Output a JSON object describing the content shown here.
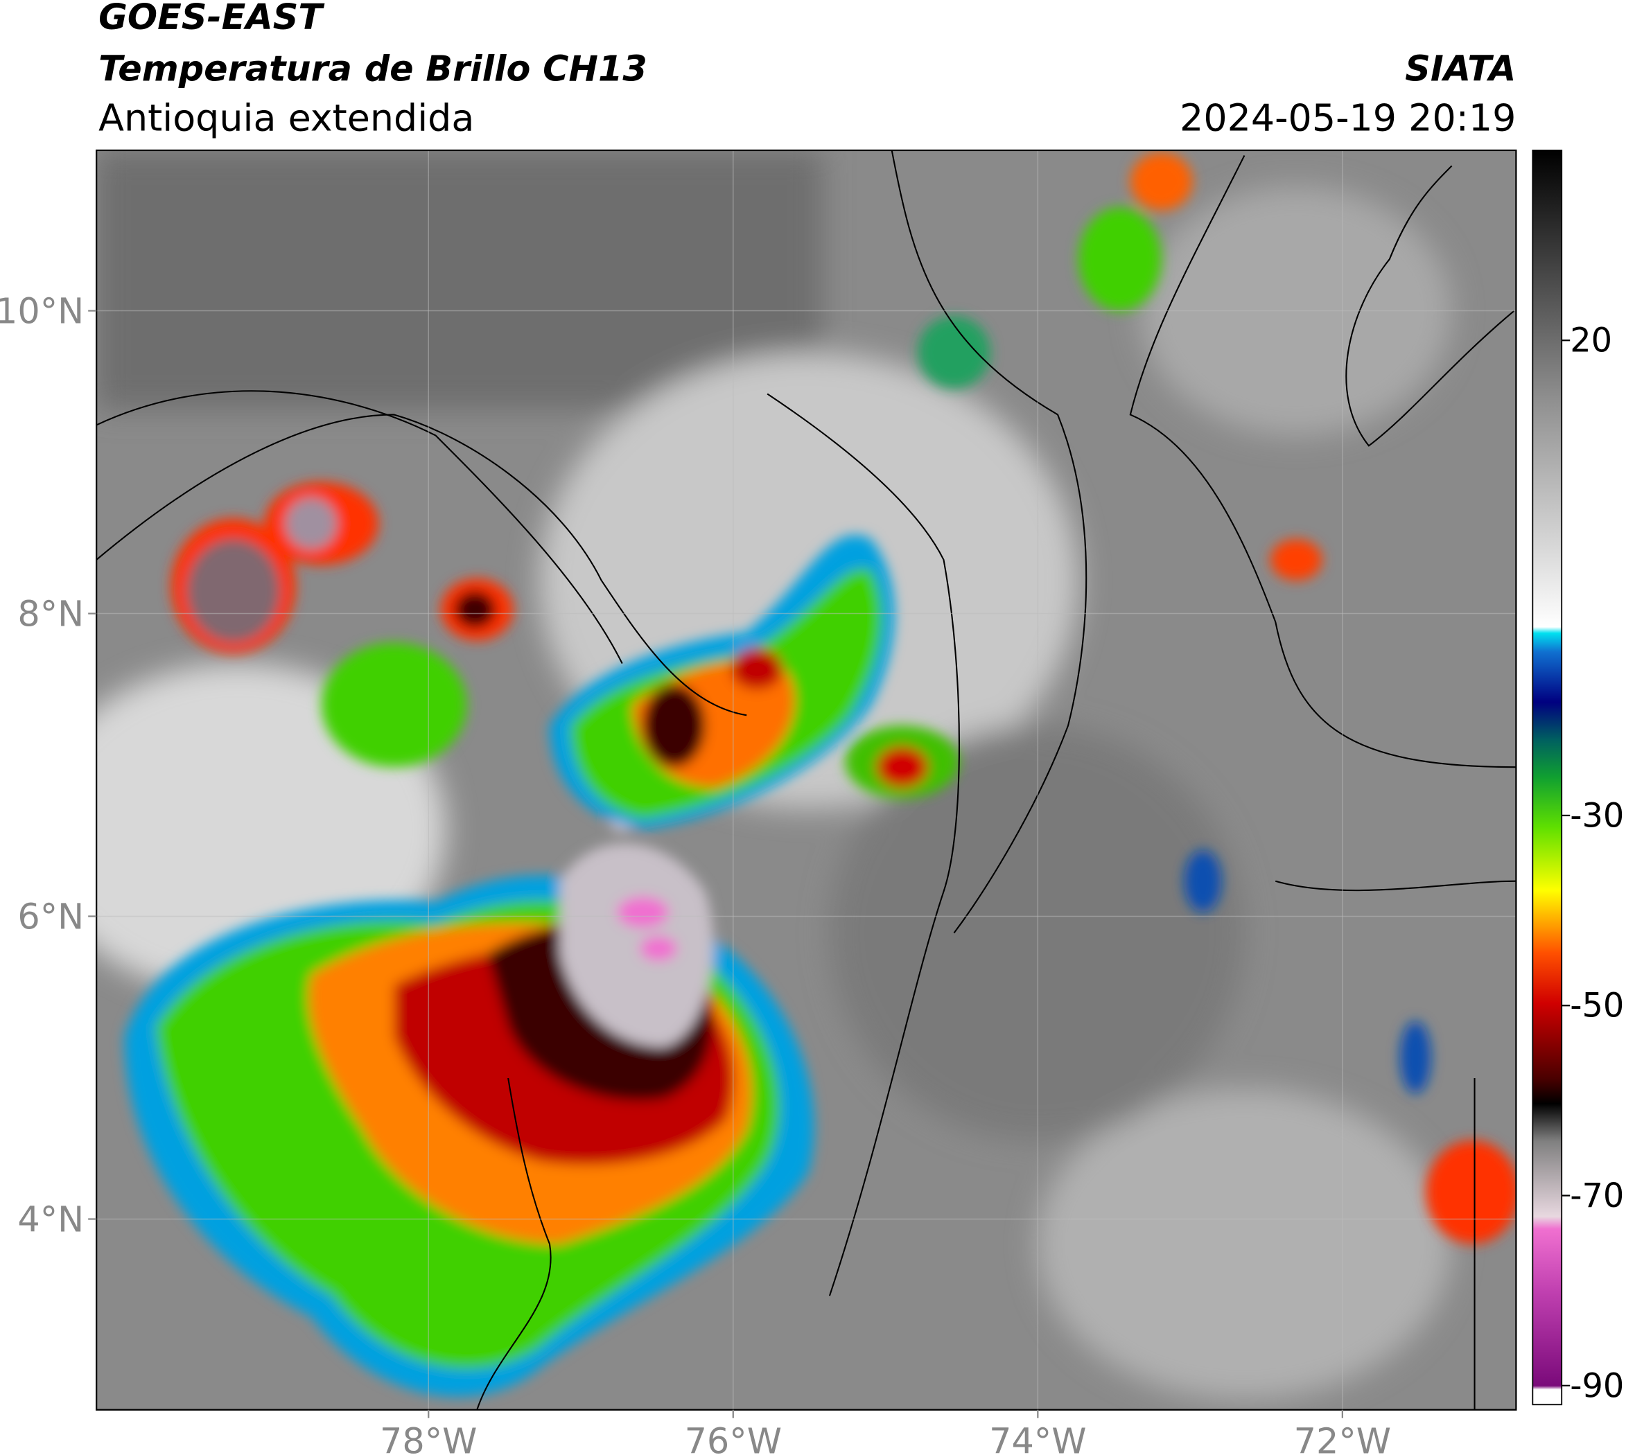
{
  "header": {
    "satellite": "GOES-EAST",
    "product": "Temperatura de Brillo CH13",
    "region": "Antioquia extendida",
    "source": "SIATA",
    "datetime": "2024-05-19 20:19"
  },
  "map": {
    "xlim": [
      -80.18,
      -70.86
    ],
    "ylim": [
      2.74,
      11.06
    ],
    "xticks": [
      {
        "value": -78,
        "label": "78°W"
      },
      {
        "value": -76,
        "label": "76°W"
      },
      {
        "value": -74,
        "label": "74°W"
      },
      {
        "value": -72,
        "label": "72°W"
      }
    ],
    "yticks": [
      {
        "value": 4,
        "label": "4°N"
      },
      {
        "value": 6,
        "label": "6°N"
      },
      {
        "value": 8,
        "label": "8°N"
      },
      {
        "value": 10,
        "label": "10°N"
      }
    ]
  },
  "colorbar": {
    "clim": [
      -92,
      40
    ],
    "ticks": [
      20,
      -30,
      -50,
      -70,
      -90
    ]
  }
}
